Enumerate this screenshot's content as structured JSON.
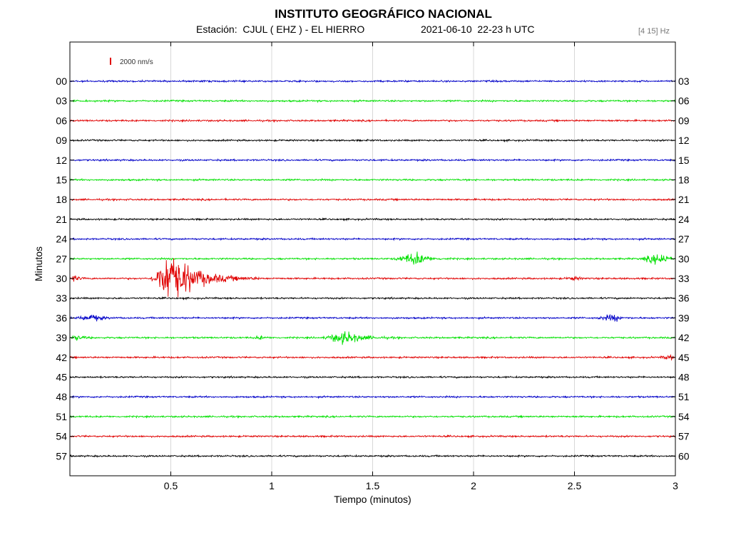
{
  "header": {
    "title": "INSTITUTO GEOGRÁFICO NACIONAL",
    "station": "Estación:  CJUL ( EHZ ) - EL HIERRO",
    "datetime": "2021-06-10  22-23 h UTC",
    "filter": "[4 15] Hz"
  },
  "chart_data": {
    "type": "line",
    "title": "INSTITUTO GEOGRÁFICO NACIONAL",
    "xlabel": "Tiempo (minutos)",
    "ylabel": "Minutos",
    "xlim": [
      0,
      3
    ],
    "x_ticks": [
      "0.5",
      "1",
      "1.5",
      "2",
      "2.5",
      "3"
    ],
    "x_tick_values": [
      0.5,
      1,
      1.5,
      2,
      2.5,
      3
    ],
    "left_labels": [
      "00",
      "03",
      "06",
      "09",
      "12",
      "15",
      "18",
      "21",
      "24",
      "27",
      "30",
      "33",
      "36",
      "39",
      "42",
      "45",
      "48",
      "51",
      "54",
      "57"
    ],
    "right_labels": [
      "03",
      "06",
      "09",
      "12",
      "15",
      "18",
      "21",
      "24",
      "27",
      "30",
      "33",
      "36",
      "39",
      "42",
      "45",
      "48",
      "51",
      "54",
      "57",
      "60"
    ],
    "trace_colors": [
      "#0000c8",
      "#00e000",
      "#e00000",
      "#000000"
    ],
    "scale_bar_label": "2000 nm/s",
    "grid": "vertical",
    "events": [
      {
        "trace": 9,
        "start": 1.6,
        "peak": 1.72,
        "end": 1.9,
        "amplitude": 0.6
      },
      {
        "trace": 9,
        "start": 2.82,
        "peak": 2.95,
        "end": 3.0,
        "amplitude": 0.6
      },
      {
        "trace": 10,
        "start": 0.0,
        "peak": 0.02,
        "end": 0.1,
        "amplitude": 0.3
      },
      {
        "trace": 10,
        "start": 0.4,
        "peak": 0.5,
        "end": 0.95,
        "amplitude": 2.6
      },
      {
        "trace": 10,
        "start": 2.45,
        "peak": 2.5,
        "end": 2.6,
        "amplitude": 0.15
      },
      {
        "trace": 12,
        "start": 0.02,
        "peak": 0.12,
        "end": 0.25,
        "amplitude": 0.3
      },
      {
        "trace": 12,
        "start": 2.6,
        "peak": 2.7,
        "end": 2.8,
        "amplitude": 0.3
      },
      {
        "trace": 13,
        "start": 0.0,
        "peak": 0.03,
        "end": 0.15,
        "amplitude": 0.25
      },
      {
        "trace": 13,
        "start": 0.9,
        "peak": 0.95,
        "end": 1.0,
        "amplitude": 0.15
      },
      {
        "trace": 13,
        "start": 1.25,
        "peak": 1.37,
        "end": 1.65,
        "amplitude": 0.6
      },
      {
        "trace": 14,
        "start": 2.92,
        "peak": 2.98,
        "end": 3.0,
        "amplitude": 0.2
      }
    ]
  }
}
